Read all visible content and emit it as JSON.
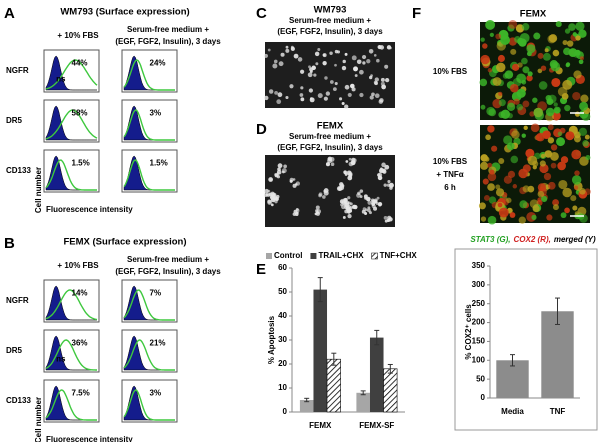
{
  "panels": {
    "A": {
      "label": "A",
      "title": "WM793 (Surface expression)",
      "condition_1": "+ 10% FBS",
      "condition_2": [
        "Serum-free medium +",
        "(EGF, FGF2, Insulin), 3 days"
      ],
      "markers": [
        "NGFR",
        "DR5",
        "CD133"
      ],
      "cells": [
        [
          {
            "percent": "44%",
            "note": "ns"
          },
          {
            "percent": "24%"
          }
        ],
        [
          {
            "percent": "58%"
          },
          {
            "percent": "3%"
          }
        ],
        [
          {
            "percent": "1.5%"
          },
          {
            "percent": "1.5%"
          }
        ]
      ],
      "y_label": "Cell number",
      "x_label": "Fluorescence intensity"
    },
    "B": {
      "label": "B",
      "title": "FEMX (Surface expression)",
      "condition_1": "+ 10% FBS",
      "condition_2": [
        "Serum-free medium +",
        "(EGF, FGF2, Insulin), 3 days"
      ],
      "markers": [
        "NGFR",
        "DR5",
        "CD133"
      ],
      "cells": [
        [
          {
            "percent": "14%"
          },
          {
            "percent": "7%"
          }
        ],
        [
          {
            "percent": "36%",
            "note": "ns"
          },
          {
            "percent": "21%"
          }
        ],
        [
          {
            "percent": "7.5%"
          },
          {
            "percent": "3%"
          }
        ]
      ],
      "y_label": "Cell number",
      "x_label": "Fluorescence intensity"
    },
    "C": {
      "label": "C",
      "lines": [
        "WM793",
        "Serum-free medium +",
        "(EGF, FGF2, Insulin), 3 days"
      ]
    },
    "D": {
      "label": "D",
      "lines": [
        "FEMX",
        "Serum-free medium +",
        "(EGF, FGF2, Insulin), 3 days"
      ]
    },
    "F": {
      "label": "F",
      "title": "FEMX",
      "image_labels": [
        [
          "10% FBS"
        ],
        [
          "10% FBS",
          "+ TNFα",
          "6 h"
        ]
      ],
      "caption": [
        {
          "text": "STAT3 (G),",
          "color": "#22a022"
        },
        {
          "text": "COX2 (R),",
          "color": "#d02020"
        },
        {
          "text": "merged (Y)",
          "color": "#000000"
        }
      ]
    }
  },
  "chart_data": [
    {
      "type": "bar",
      "panel_label": "E",
      "y_label": "% Apoptosis",
      "categories": [
        "FEMX",
        "FEMX-SF"
      ],
      "series": [
        {
          "name": "Control",
          "color": "#a6a6a6",
          "values": [
            5,
            8
          ],
          "errors": [
            0.7,
            0.8
          ]
        },
        {
          "name": "TRAIL+CHX",
          "color": "#404040",
          "values": [
            51,
            31
          ],
          "errors": [
            5,
            3
          ]
        },
        {
          "name": "TNF+CHX",
          "color": "#ffffff",
          "pattern": "hatch",
          "values": [
            22,
            18
          ],
          "errors": [
            2.5,
            1.8
          ]
        }
      ],
      "ylim": [
        0,
        60
      ],
      "yticks": [
        0,
        10,
        20,
        30,
        40,
        50,
        60
      ],
      "legend": "top"
    },
    {
      "type": "bar",
      "y_label": "% COX2⁺ cells",
      "categories": [
        "Media",
        "TNF"
      ],
      "series": [
        {
          "color": "#8c8c8c",
          "values": [
            100,
            230
          ],
          "errors": [
            15,
            35
          ]
        }
      ],
      "ylim": [
        0,
        350
      ],
      "yticks": [
        0,
        50,
        100,
        150,
        200,
        250,
        300,
        350
      ]
    }
  ]
}
